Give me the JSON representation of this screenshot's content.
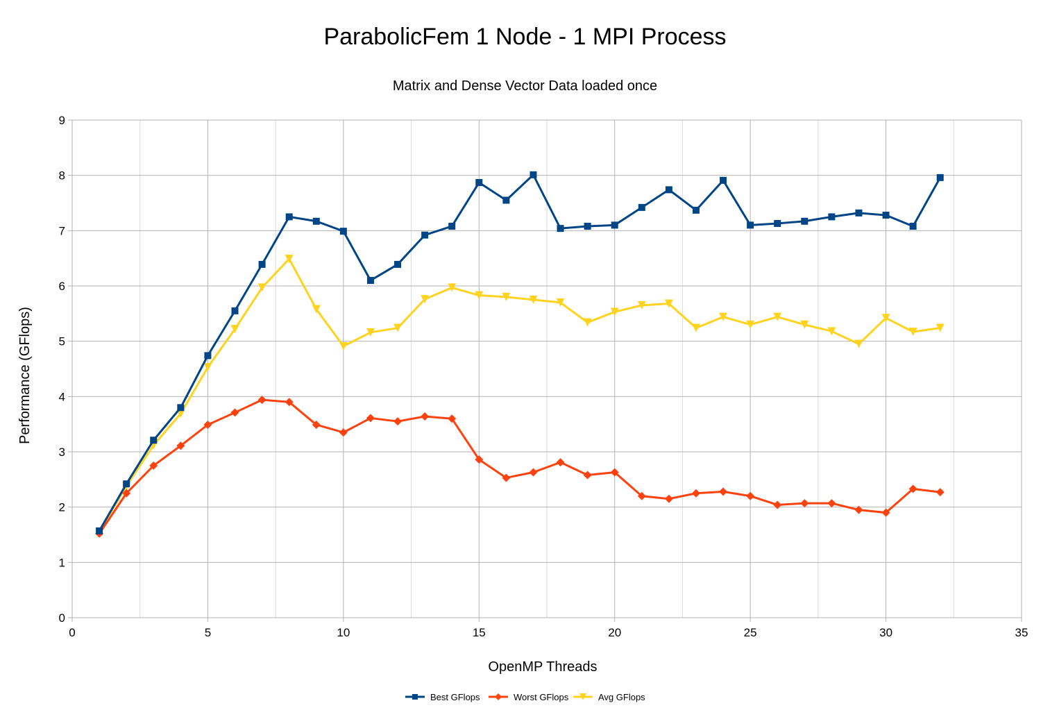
{
  "chart_data": {
    "type": "line",
    "title": "ParabolicFem 1 Node - 1 MPI Process",
    "subtitle": "Matrix and Dense Vector Data loaded once",
    "xlabel": "OpenMP Threads",
    "ylabel": "Performance (GFlops)",
    "xlim": [
      0,
      35
    ],
    "ylim": [
      0,
      9
    ],
    "xticks": [
      "0",
      "5",
      "10",
      "15",
      "20",
      "25",
      "30",
      "35"
    ],
    "yticks": [
      "0",
      "1",
      "2",
      "3",
      "4",
      "5",
      "6",
      "7",
      "8",
      "9"
    ],
    "grid": true,
    "legend_position": "bottom",
    "x": [
      1,
      2,
      3,
      4,
      5,
      6,
      7,
      8,
      9,
      10,
      11,
      12,
      13,
      14,
      15,
      16,
      17,
      18,
      19,
      20,
      21,
      22,
      23,
      24,
      25,
      26,
      27,
      28,
      29,
      30,
      31,
      32
    ],
    "series": [
      {
        "name": "Best GFlops",
        "color": "#004586",
        "marker": "square",
        "values": [
          1.57,
          2.42,
          3.21,
          3.8,
          4.74,
          5.55,
          6.39,
          7.25,
          7.17,
          6.99,
          6.1,
          6.39,
          6.92,
          7.08,
          7.87,
          7.55,
          8.01,
          7.04,
          7.08,
          7.1,
          7.42,
          7.74,
          7.37,
          7.91,
          7.1,
          7.13,
          7.17,
          7.25,
          7.32,
          7.28,
          7.08,
          7.96
        ]
      },
      {
        "name": "Worst GFlops",
        "color": "#ff420e",
        "marker": "diamond",
        "values": [
          1.52,
          2.25,
          2.75,
          3.11,
          3.49,
          3.71,
          3.94,
          3.9,
          3.49,
          3.35,
          3.61,
          3.55,
          3.64,
          3.6,
          2.86,
          2.53,
          2.63,
          2.81,
          2.58,
          2.63,
          2.2,
          2.15,
          2.25,
          2.28,
          2.2,
          2.04,
          2.07,
          2.07,
          1.95,
          1.9,
          2.33,
          2.27
        ]
      },
      {
        "name": "Avg GFlops",
        "color": "#ffd320",
        "marker": "triangle-down",
        "values": [
          1.55,
          2.38,
          3.12,
          3.69,
          4.53,
          5.22,
          5.97,
          6.49,
          5.58,
          4.91,
          5.16,
          5.24,
          5.76,
          5.97,
          5.83,
          5.8,
          5.75,
          5.7,
          5.34,
          5.53,
          5.65,
          5.68,
          5.24,
          5.44,
          5.3,
          5.44,
          5.3,
          5.18,
          4.95,
          5.42,
          5.17,
          5.24
        ]
      }
    ]
  }
}
